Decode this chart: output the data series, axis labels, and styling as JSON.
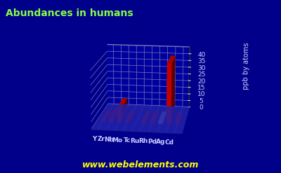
{
  "title": "Abundances in humans",
  "ylabel": "ppb by atoms",
  "website": "www.webelements.com",
  "elements": [
    "Y",
    "Zr",
    "Nb",
    "Mo",
    "Tc",
    "Ru",
    "Rh",
    "Pd",
    "Ag",
    "Cd"
  ],
  "values": [
    0.6,
    3.0,
    10.0,
    1.2,
    0.0,
    1.2,
    1.2,
    1.2,
    42.0,
    1.2
  ],
  "bar_colors": [
    "#dd0000",
    "#dd0000",
    "#dd0000",
    "#dd0000",
    "#dd0000",
    "#dd0000",
    "#dd0000",
    "#c8c8c8",
    "#dd0000",
    "#dd0000"
  ],
  "ylim": [
    0,
    45
  ],
  "yticks": [
    0,
    5,
    10,
    15,
    20,
    25,
    30,
    35,
    40
  ],
  "bg_color": "#00008b",
  "pane_color": "#00009e",
  "grid_color": "#7777bb",
  "title_color": "#88ff44",
  "label_color": "#ccccff",
  "tick_color": "#ccccff",
  "website_color": "#ffff00",
  "platform_color": "#2222aa",
  "bar_width": 0.55,
  "bar_depth": 0.4,
  "elev": 15,
  "azim": -82
}
